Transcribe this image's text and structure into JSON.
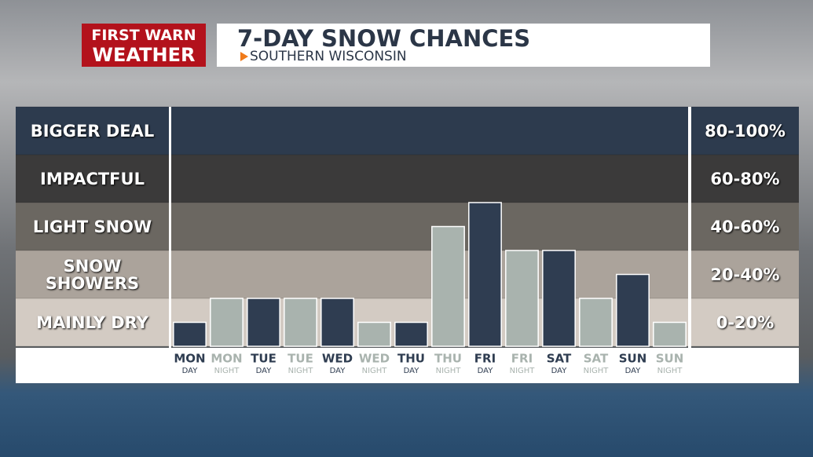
{
  "logo": {
    "line1": "FIRST WARN",
    "line2": "WEATHER"
  },
  "chart_data": {
    "type": "bar",
    "title": "7-DAY SNOW CHANCES",
    "subtitle": "SOUTHERN WISCONSIN",
    "categories": [
      "MON",
      "MON",
      "TUE",
      "TUE",
      "WED",
      "WED",
      "THU",
      "THU",
      "FRI",
      "FRI",
      "SAT",
      "SAT",
      "SUN",
      "SUN"
    ],
    "periods": [
      "DAY",
      "NIGHT",
      "DAY",
      "NIGHT",
      "DAY",
      "NIGHT",
      "DAY",
      "NIGHT",
      "DAY",
      "NIGHT",
      "DAY",
      "NIGHT",
      "DAY",
      "NIGHT"
    ],
    "values": [
      10,
      20,
      20,
      20,
      20,
      10,
      10,
      50,
      60,
      40,
      40,
      20,
      30,
      10
    ],
    "colors": [
      "#2f3d51",
      "#a9b3ae",
      "#2f3d51",
      "#a9b3ae",
      "#2f3d51",
      "#a9b3ae",
      "#2f3d51",
      "#a9b3ae",
      "#2f3d51",
      "#a9b3ae",
      "#2f3d51",
      "#a9b3ae",
      "#2f3d51",
      "#a9b3ae"
    ],
    "ylim": [
      0,
      100
    ],
    "yticks": [
      0,
      20,
      40,
      60,
      80,
      100
    ],
    "bands": [
      {
        "label": "MAINLY DRY",
        "range": "0-20%",
        "color": "#d3cbc3"
      },
      {
        "label": "SNOW SHOWERS",
        "range": "20-40%",
        "color": "#aba39b"
      },
      {
        "label": "LIGHT SNOW",
        "range": "40-60%",
        "color": "#6b6761"
      },
      {
        "label": "IMPACTFUL",
        "range": "60-80%",
        "color": "#3b3a3a"
      },
      {
        "label": "BIGGER DEAL",
        "range": "80-100%",
        "color": "#2d3b4e"
      }
    ]
  }
}
